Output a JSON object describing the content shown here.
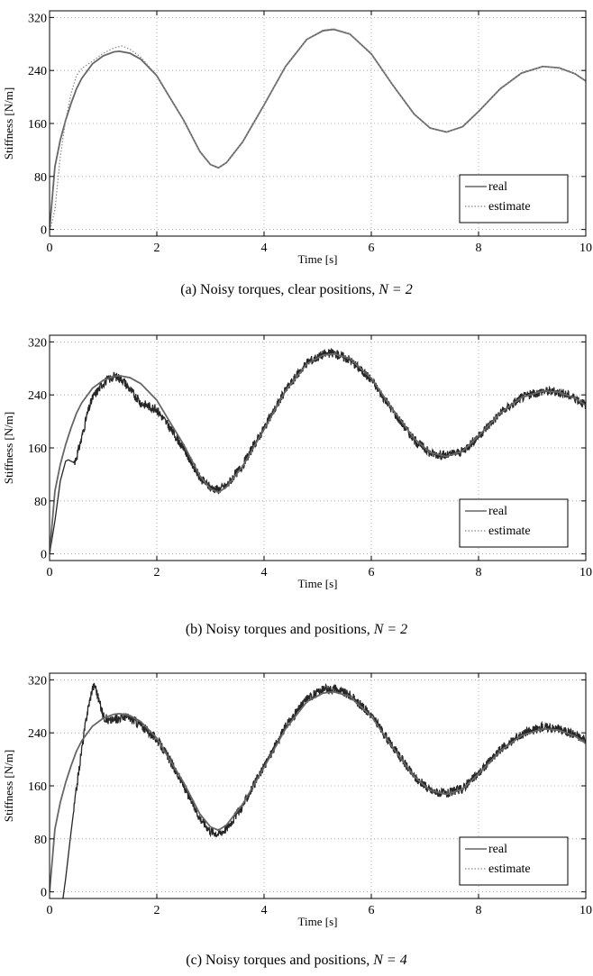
{
  "chart_data": [
    {
      "type": "line",
      "xlabel": "Time [s]",
      "ylabel": "Stiffness [N/m]",
      "xlim": [
        0,
        10
      ],
      "ylim": [
        -10,
        330
      ],
      "xticks": [
        "0",
        "2",
        "4",
        "6",
        "8",
        "10"
      ],
      "yticks": [
        "0",
        "80",
        "160",
        "240",
        "320"
      ],
      "grid": true,
      "legend_position": "bottom-right",
      "caption": {
        "prefix": "(a) Noisy torques, clear positions,",
        "n_label": "N = 2"
      },
      "series": [
        {
          "name": "real",
          "style": "solid",
          "color": "#666666",
          "x": [
            0,
            0.1,
            0.2,
            0.3,
            0.4,
            0.5,
            0.6,
            0.8,
            1.0,
            1.2,
            1.3,
            1.5,
            1.7,
            2.0,
            2.2,
            2.5,
            2.8,
            3.0,
            3.15,
            3.3,
            3.6,
            4.0,
            4.4,
            4.8,
            5.1,
            5.3,
            5.6,
            6.0,
            6.4,
            6.8,
            7.1,
            7.4,
            7.7,
            8.0,
            8.4,
            8.8,
            9.2,
            9.5,
            9.8,
            10.0
          ],
          "y": [
            0,
            95,
            135,
            165,
            190,
            212,
            228,
            250,
            262,
            268,
            269,
            266,
            257,
            232,
            205,
            165,
            118,
            98,
            93,
            101,
            132,
            188,
            246,
            287,
            300,
            302,
            295,
            265,
            218,
            174,
            153,
            147,
            155,
            178,
            212,
            236,
            246,
            244,
            235,
            224
          ]
        },
        {
          "name": "estimate",
          "style": "dotted",
          "color": "#888888",
          "x": [
            0,
            0.1,
            0.2,
            0.3,
            0.4,
            0.5,
            0.6,
            0.8,
            1.0,
            1.2,
            1.35,
            1.5,
            1.7,
            2.0,
            2.2,
            2.5,
            2.8,
            3.0,
            3.15,
            3.3,
            3.6,
            4.0,
            4.4,
            4.8,
            5.1,
            5.3,
            5.6,
            6.0,
            6.4,
            6.8,
            7.1,
            7.4,
            7.7,
            8.0,
            8.4,
            8.8,
            9.2,
            9.5,
            9.8,
            10.0
          ],
          "y": [
            -5,
            30,
            110,
            165,
            205,
            232,
            243,
            254,
            266,
            274,
            277,
            272,
            260,
            233,
            206,
            165,
            118,
            98,
            93,
            101,
            132,
            188,
            246,
            287,
            301,
            303,
            295,
            265,
            218,
            174,
            153,
            147,
            155,
            178,
            212,
            236,
            246,
            244,
            235,
            224
          ]
        }
      ]
    },
    {
      "type": "line",
      "xlabel": "Time [s]",
      "ylabel": "Stiffness [N/m]",
      "xlim": [
        0,
        10
      ],
      "ylim": [
        -10,
        330
      ],
      "xticks": [
        "0",
        "2",
        "4",
        "6",
        "8",
        "10"
      ],
      "yticks": [
        "0",
        "80",
        "160",
        "240",
        "320"
      ],
      "grid": true,
      "legend_position": "bottom-right",
      "caption": {
        "prefix": "(b) Noisy torques and positions,",
        "n_label": "N = 2"
      },
      "series": [
        {
          "name": "real",
          "style": "solid",
          "color": "#666666",
          "x": [
            0,
            0.1,
            0.2,
            0.3,
            0.4,
            0.5,
            0.6,
            0.8,
            1.0,
            1.2,
            1.3,
            1.5,
            1.7,
            2.0,
            2.2,
            2.5,
            2.8,
            3.0,
            3.15,
            3.3,
            3.6,
            4.0,
            4.4,
            4.8,
            5.1,
            5.3,
            5.6,
            6.0,
            6.4,
            6.8,
            7.1,
            7.4,
            7.7,
            8.0,
            8.4,
            8.8,
            9.2,
            9.5,
            9.8,
            10.0
          ],
          "y": [
            0,
            95,
            135,
            165,
            190,
            212,
            228,
            250,
            262,
            268,
            269,
            266,
            257,
            232,
            205,
            165,
            118,
            98,
            93,
            101,
            132,
            188,
            246,
            287,
            300,
            302,
            295,
            265,
            218,
            174,
            153,
            147,
            155,
            178,
            212,
            236,
            246,
            244,
            235,
            224
          ]
        },
        {
          "name": "estimate",
          "style": "noisy",
          "color": "#000000",
          "x": [
            0,
            0.1,
            0.2,
            0.3,
            0.35,
            0.45,
            0.5,
            0.6,
            0.7,
            0.8,
            1.0,
            1.2,
            1.35,
            1.5,
            1.7,
            2.0,
            2.2,
            2.5,
            2.8,
            3.0,
            3.15,
            3.3,
            3.6,
            4.0,
            4.4,
            4.8,
            5.1,
            5.3,
            5.6,
            6.0,
            6.4,
            6.8,
            7.1,
            7.4,
            7.7,
            8.0,
            8.4,
            8.8,
            9.2,
            9.5,
            9.8,
            10.0
          ],
          "y": [
            0,
            50,
            110,
            140,
            142,
            138,
            145,
            175,
            210,
            235,
            258,
            268,
            264,
            248,
            228,
            218,
            195,
            160,
            115,
            100,
            97,
            103,
            134,
            190,
            247,
            289,
            301,
            303,
            293,
            263,
            216,
            172,
            152,
            148,
            155,
            178,
            212,
            236,
            246,
            244,
            236,
            225
          ]
        }
      ]
    },
    {
      "type": "line",
      "xlabel": "Time [s]",
      "ylabel": "Stiffness [N/m]",
      "xlim": [
        0,
        10
      ],
      "ylim": [
        -10,
        330
      ],
      "xticks": [
        "0",
        "2",
        "4",
        "6",
        "8",
        "10"
      ],
      "yticks": [
        "0",
        "80",
        "160",
        "240",
        "320"
      ],
      "grid": true,
      "legend_position": "bottom-right",
      "caption": {
        "prefix": "(c) Noisy torques and positions,",
        "n_label": "N = 4"
      },
      "series": [
        {
          "name": "real",
          "style": "solid",
          "color": "#666666",
          "x": [
            0,
            0.1,
            0.2,
            0.3,
            0.4,
            0.5,
            0.6,
            0.8,
            1.0,
            1.2,
            1.3,
            1.5,
            1.7,
            2.0,
            2.2,
            2.5,
            2.8,
            3.0,
            3.15,
            3.3,
            3.6,
            4.0,
            4.4,
            4.8,
            5.1,
            5.3,
            5.6,
            6.0,
            6.4,
            6.8,
            7.1,
            7.4,
            7.7,
            8.0,
            8.4,
            8.8,
            9.2,
            9.5,
            9.8,
            10.0
          ],
          "y": [
            0,
            95,
            135,
            165,
            190,
            212,
            228,
            250,
            262,
            268,
            269,
            266,
            257,
            232,
            205,
            165,
            118,
            98,
            93,
            101,
            132,
            188,
            246,
            287,
            300,
            302,
            295,
            265,
            218,
            174,
            153,
            147,
            155,
            178,
            212,
            236,
            246,
            244,
            235,
            224
          ]
        },
        {
          "name": "estimate",
          "style": "noisy",
          "color": "#000000",
          "x": [
            0.25,
            0.3,
            0.4,
            0.5,
            0.6,
            0.7,
            0.8,
            0.85,
            0.9,
            1.0,
            1.1,
            1.2,
            1.4,
            1.6,
            1.8,
            2.0,
            2.2,
            2.5,
            2.8,
            3.0,
            3.15,
            3.3,
            3.6,
            4.0,
            4.4,
            4.8,
            5.1,
            5.3,
            5.6,
            6.0,
            6.4,
            6.8,
            7.1,
            7.4,
            7.7,
            8.0,
            8.4,
            8.8,
            9.2,
            9.5,
            9.8,
            10.0
          ],
          "y": [
            -10,
            20,
            90,
            155,
            215,
            270,
            308,
            312,
            295,
            266,
            258,
            260,
            265,
            258,
            245,
            230,
            205,
            160,
            112,
            92,
            88,
            96,
            130,
            189,
            249,
            292,
            305,
            307,
            297,
            267,
            219,
            174,
            153,
            148,
            156,
            179,
            214,
            238,
            249,
            246,
            238,
            228
          ]
        }
      ]
    }
  ]
}
